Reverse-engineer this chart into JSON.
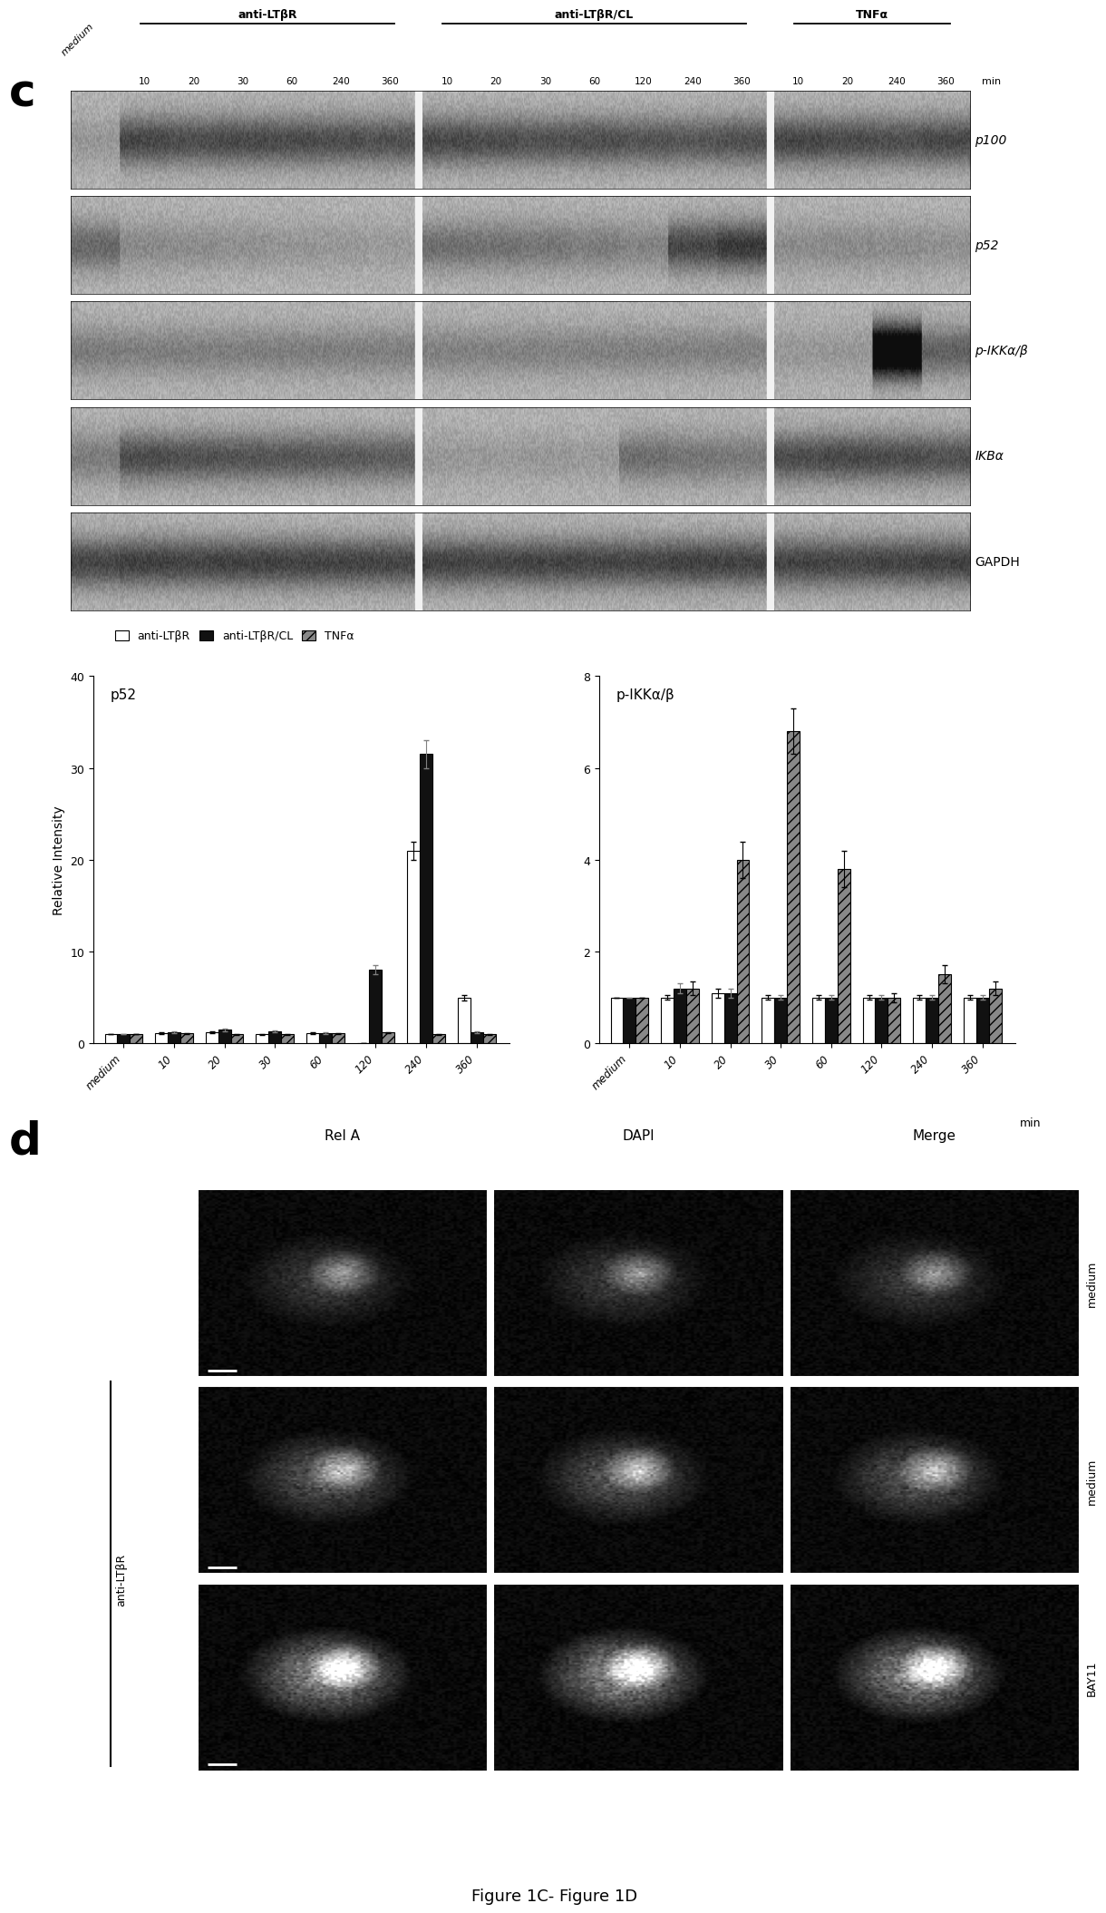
{
  "figure_label_c": "c",
  "figure_label_d": "d",
  "figure_caption": "Figure 1C- Figure 1D",
  "blot_labels": [
    "p100",
    "p52",
    "p-IKKα/β",
    "IKBα",
    "GAPDH"
  ],
  "header_groups": [
    "anti-LTβR",
    "anti-LTβR/CL",
    "TNFα"
  ],
  "bar_categories": [
    "medium",
    "10",
    "20",
    "30",
    "60",
    "120",
    "240",
    "360"
  ],
  "p52_ltbr": [
    1.0,
    1.1,
    1.2,
    1.0,
    1.1,
    0.0,
    21.0,
    5.0
  ],
  "p52_ltbrcl": [
    1.0,
    1.2,
    1.5,
    1.3,
    1.1,
    8.0,
    31.5,
    1.2
  ],
  "p52_tnfa": [
    1.0,
    1.1,
    1.0,
    1.0,
    1.1,
    1.2,
    1.0,
    1.0
  ],
  "p52_ltbr_err": [
    0.0,
    0.1,
    0.1,
    0.05,
    0.1,
    0.0,
    1.0,
    0.3
  ],
  "p52_ltbrcl_err": [
    0.0,
    0.1,
    0.15,
    0.1,
    0.1,
    0.5,
    1.5,
    0.1
  ],
  "p52_tnfa_err": [
    0.0,
    0.05,
    0.05,
    0.05,
    0.05,
    0.05,
    0.05,
    0.05
  ],
  "pikk_ltbr": [
    1.0,
    1.0,
    1.1,
    1.0,
    1.0,
    1.0,
    1.0,
    1.0
  ],
  "pikk_ltbrcl": [
    1.0,
    1.2,
    1.1,
    1.0,
    1.0,
    1.0,
    1.0,
    1.0
  ],
  "pikk_tnfa": [
    1.0,
    1.2,
    4.0,
    6.8,
    3.8,
    1.0,
    1.5,
    1.2
  ],
  "pikk_ltbr_err": [
    0.0,
    0.05,
    0.1,
    0.05,
    0.05,
    0.05,
    0.05,
    0.05
  ],
  "pikk_ltbrcl_err": [
    0.0,
    0.1,
    0.1,
    0.05,
    0.05,
    0.05,
    0.05,
    0.05
  ],
  "pikk_tnfa_err": [
    0.0,
    0.15,
    0.4,
    0.5,
    0.4,
    0.1,
    0.2,
    0.15
  ],
  "bar_width": 0.25,
  "p52_ylim": [
    0,
    40
  ],
  "pikk_ylim": [
    0,
    8
  ],
  "p52_yticks": [
    0,
    10,
    20,
    30,
    40
  ],
  "pikk_yticks": [
    0,
    2,
    4,
    6,
    8
  ],
  "ylabel": "Relative Intensity",
  "legend_labels": [
    "anti-LTβR",
    "anti-LTβR/CL",
    "TNFα"
  ],
  "bar_color_ltbr": "#ffffff",
  "bar_color_ltbrcl": "#111111",
  "bar_color_tnfa": "#888888",
  "bar_hatch_tnfa": "///",
  "p52_title": "p52",
  "pikk_title": "p-IKKα/β",
  "d_col_labels": [
    "Rel A",
    "DAPI",
    "Merge"
  ],
  "background_color": "#ffffff"
}
